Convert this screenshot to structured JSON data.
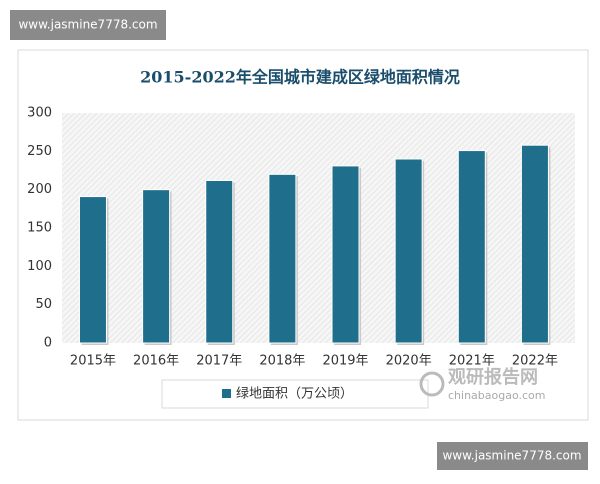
{
  "chart_data": {
    "type": "bar",
    "title": "2015-2022年全国城市建成区绿地面积情况",
    "categories": [
      "2015年",
      "2016年",
      "2017年",
      "2018年",
      "2019年",
      "2020年",
      "2021年",
      "2022年"
    ],
    "series": [
      {
        "name": "绿地面积（万公顷）",
        "color": "#1f6e8c",
        "values": [
          191,
          200,
          212,
          220,
          231,
          240,
          251,
          258
        ]
      }
    ],
    "ylim": [
      0,
      300
    ],
    "yticks": [
      0,
      50,
      100,
      150,
      200,
      250,
      300
    ],
    "grid": false,
    "legend": "bottom"
  },
  "watermarks": {
    "site_top": "www.jasmine7778.com",
    "site_bottom": "www.jasmine7778.com",
    "logo_name": "观研报告网",
    "logo_url": "chinabaogao.com"
  }
}
